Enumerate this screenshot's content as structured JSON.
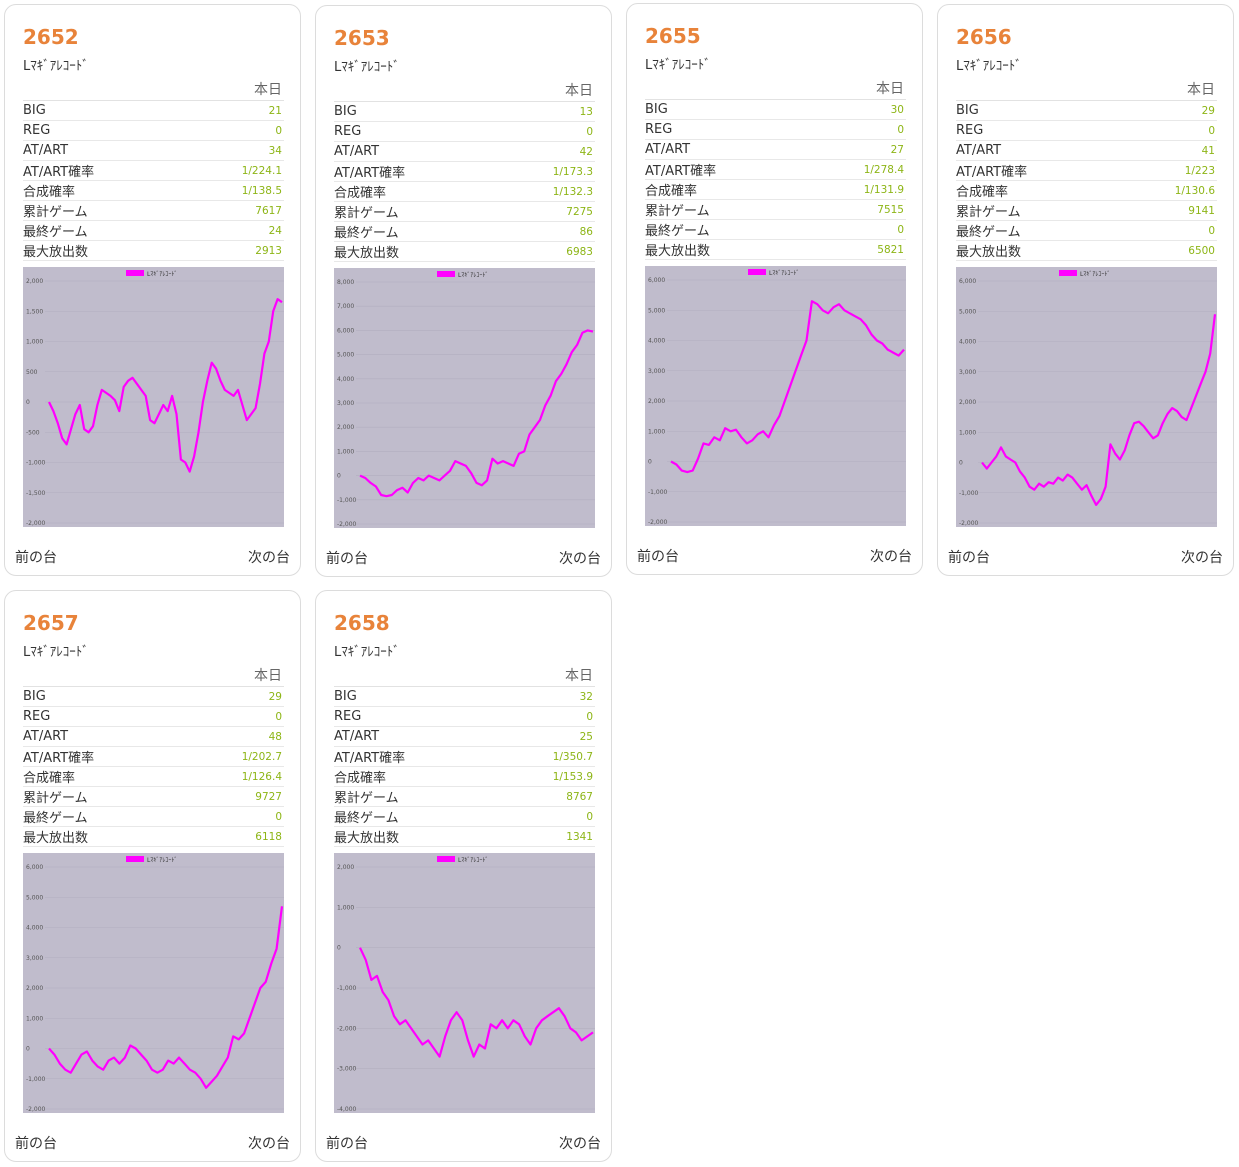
{
  "labels": {
    "today": "本日",
    "prev": "前の台",
    "next": "次の台"
  },
  "stat_labels": [
    "BIG",
    "REG",
    "AT/ART",
    "AT/ART確率",
    "合成確率",
    "累計ゲーム",
    "最終ゲーム",
    "最大放出数"
  ],
  "colors": {
    "accent": "#e8833a",
    "value": "#8db516",
    "plot_bg": "#c0bccc",
    "line": "#ff00ff"
  },
  "machines": [
    {
      "no": "2652",
      "name": "Lﾏｷﾞｱﾚｺｰﾄﾞ",
      "stats": [
        "21",
        "0",
        "34",
        "1/224.1",
        "1/138.5",
        "7617",
        "24",
        "2913"
      ]
    },
    {
      "no": "2653",
      "name": "Lﾏｷﾞｱﾚｺｰﾄﾞ",
      "stats": [
        "13",
        "0",
        "42",
        "1/173.3",
        "1/132.3",
        "7275",
        "86",
        "6983"
      ]
    },
    {
      "no": "2655",
      "name": "Lﾏｷﾞｱﾚｺｰﾄﾞ",
      "stats": [
        "30",
        "0",
        "27",
        "1/278.4",
        "1/131.9",
        "7515",
        "0",
        "5821"
      ]
    },
    {
      "no": "2656",
      "name": "Lﾏｷﾞｱﾚｺｰﾄﾞ",
      "stats": [
        "29",
        "0",
        "41",
        "1/223",
        "1/130.6",
        "9141",
        "0",
        "6500"
      ]
    },
    {
      "no": "2657",
      "name": "Lﾏｷﾞｱﾚｺｰﾄﾞ",
      "stats": [
        "29",
        "0",
        "48",
        "1/202.7",
        "1/126.4",
        "9727",
        "0",
        "6118"
      ]
    },
    {
      "no": "2658",
      "name": "Lﾏｷﾞｱﾚｺｰﾄﾞ",
      "stats": [
        "32",
        "0",
        "25",
        "1/350.7",
        "1/153.9",
        "8767",
        "0",
        "1341"
      ]
    }
  ],
  "chart_data": [
    {
      "type": "line",
      "legend": "Lﾏｷﾞｱﾚｺｰﾄﾞ",
      "legend_position": "top-center",
      "grid": true,
      "ylim": [
        -2000,
        2000
      ],
      "yticks": [
        "-2,000",
        "-1,500",
        "-1,000",
        "-500",
        "0",
        "500",
        "1,000",
        "1,500",
        "2,000"
      ],
      "series": [
        {
          "name": "Lﾏｷﾞｱﾚｺｰﾄﾞ",
          "values": [
            0,
            -150,
            -350,
            -600,
            -700,
            -450,
            -200,
            -50,
            -450,
            -500,
            -400,
            -50,
            200,
            150,
            100,
            30,
            -150,
            250,
            350,
            400,
            300,
            200,
            100,
            -300,
            -350,
            -200,
            -50,
            -150,
            100,
            -200,
            -950,
            -1000,
            -1150,
            -900,
            -500,
            0,
            350,
            650,
            550,
            350,
            200,
            150,
            100,
            200,
            -50,
            -300,
            -200,
            -100,
            300,
            800,
            1000,
            1500,
            1700,
            1650
          ]
        }
      ]
    },
    {
      "type": "line",
      "legend": "Lﾏｷﾞｱﾚｺｰﾄﾞ",
      "legend_position": "top-center",
      "grid": true,
      "ylim": [
        -2000,
        8000
      ],
      "yticks": [
        "-2,000",
        "-1,000",
        "0",
        "1,000",
        "2,000",
        "3,000",
        "4,000",
        "5,000",
        "6,000",
        "7,000",
        "8,000"
      ],
      "series": [
        {
          "name": "Lﾏｷﾞｱﾚｺｰﾄﾞ",
          "values": [
            0,
            -100,
            -300,
            -450,
            -800,
            -850,
            -800,
            -600,
            -500,
            -700,
            -300,
            -100,
            -200,
            0,
            -100,
            -200,
            0,
            200,
            600,
            500,
            400,
            100,
            -300,
            -400,
            -200,
            700,
            500,
            600,
            500,
            400,
            900,
            1000,
            1700,
            2000,
            2300,
            2900,
            3300,
            3900,
            4200,
            4600,
            5100,
            5400,
            5900,
            6000,
            5950
          ]
        }
      ]
    },
    {
      "type": "line",
      "legend": "Lﾏｷﾞｱﾚｺｰﾄﾞ",
      "legend_position": "top-center",
      "grid": true,
      "ylim": [
        -2000,
        6000
      ],
      "yticks": [
        "-2,000",
        "-1,000",
        "0",
        "1,000",
        "2,000",
        "3,000",
        "4,000",
        "5,000",
        "6,000"
      ],
      "series": [
        {
          "name": "Lﾏｷﾞｱﾚｺｰﾄﾞ",
          "values": [
            0,
            -100,
            -300,
            -350,
            -300,
            100,
            600,
            550,
            800,
            700,
            1100,
            1000,
            1050,
            800,
            600,
            700,
            900,
            1000,
            800,
            1200,
            1500,
            2000,
            2500,
            3000,
            3500,
            4000,
            5300,
            5200,
            5000,
            4900,
            5100,
            5200,
            5000,
            4900,
            4800,
            4700,
            4500,
            4200,
            4000,
            3900,
            3700,
            3600,
            3500,
            3700
          ]
        }
      ]
    },
    {
      "type": "line",
      "legend": "Lﾏｷﾞｱﾚｺｰﾄﾞ",
      "legend_position": "top-center",
      "grid": true,
      "ylim": [
        -2000,
        6000
      ],
      "yticks": [
        "-2,000",
        "-1,000",
        "0",
        "1,000",
        "2,000",
        "3,000",
        "4,000",
        "5,000",
        "6,000"
      ],
      "series": [
        {
          "name": "Lﾏｷﾞｱﾚｺｰﾄﾞ",
          "values": [
            0,
            -200,
            0,
            200,
            500,
            200,
            100,
            0,
            -300,
            -500,
            -800,
            -900,
            -700,
            -800,
            -650,
            -700,
            -500,
            -600,
            -400,
            -500,
            -700,
            -900,
            -750,
            -1100,
            -1400,
            -1200,
            -800,
            600,
            300,
            100,
            400,
            900,
            1300,
            1350,
            1200,
            1000,
            800,
            900,
            1300,
            1600,
            1800,
            1700,
            1500,
            1400,
            1800,
            2200,
            2600,
            3000,
            3600,
            4900
          ]
        }
      ]
    },
    {
      "type": "line",
      "legend": "Lﾏｷﾞｱﾚｺｰﾄﾞ",
      "legend_position": "top-center",
      "grid": true,
      "ylim": [
        -2000,
        6000
      ],
      "yticks": [
        "-2,000",
        "-1,000",
        "0",
        "1,000",
        "2,000",
        "3,000",
        "4,000",
        "5,000",
        "6,000"
      ],
      "series": [
        {
          "name": "Lﾏｷﾞｱﾚｺｰﾄﾞ",
          "values": [
            0,
            -200,
            -500,
            -700,
            -800,
            -500,
            -200,
            -100,
            -400,
            -600,
            -700,
            -400,
            -300,
            -500,
            -300,
            100,
            0,
            -200,
            -400,
            -700,
            -800,
            -700,
            -400,
            -500,
            -300,
            -500,
            -700,
            -800,
            -1000,
            -1300,
            -1100,
            -900,
            -600,
            -300,
            400,
            300,
            500,
            1000,
            1500,
            2000,
            2200,
            2800,
            3300,
            4700
          ]
        }
      ]
    },
    {
      "type": "line",
      "legend": "Lﾏｷﾞｱﾚｺｰﾄﾞ",
      "legend_position": "top-center",
      "grid": true,
      "ylim": [
        -4000,
        2000
      ],
      "yticks": [
        "-4,000",
        "-3,000",
        "-2,000",
        "-1,000",
        "0",
        "1,000",
        "2,000"
      ],
      "series": [
        {
          "name": "Lﾏｷﾞｱﾚｺｰﾄﾞ",
          "values": [
            0,
            -300,
            -800,
            -700,
            -1100,
            -1300,
            -1700,
            -1900,
            -1800,
            -2000,
            -2200,
            -2400,
            -2300,
            -2500,
            -2700,
            -2200,
            -1800,
            -1600,
            -1800,
            -2300,
            -2700,
            -2400,
            -2500,
            -1900,
            -2000,
            -1800,
            -2000,
            -1800,
            -1900,
            -2200,
            -2400,
            -2000,
            -1800,
            -1700,
            -1600,
            -1500,
            -1700,
            -2000,
            -2100,
            -2300,
            -2200,
            -2100
          ]
        }
      ]
    }
  ]
}
